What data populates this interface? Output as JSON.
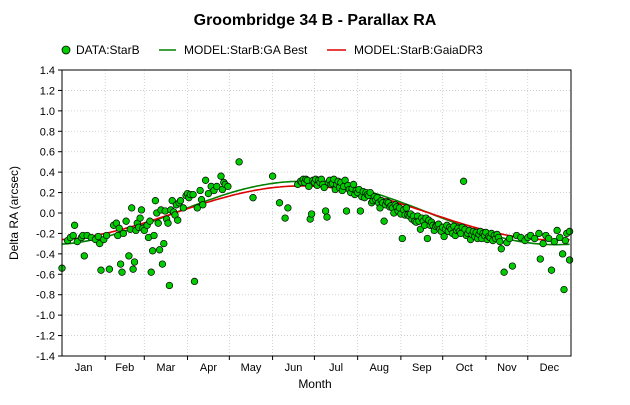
{
  "chart_data": {
    "type": "scatter",
    "title": "Groombridge 34 B - Parallax RA",
    "xlabel": "Month",
    "ylabel": "Delta RA (arcsec)",
    "x_unit": "day of year",
    "xlim": [
      1,
      366
    ],
    "ylim": [
      -1.4,
      1.4
    ],
    "y_ticks": [
      "1.4",
      "1.2",
      "1.0",
      "0.8",
      "0.6",
      "0.4",
      "0.2",
      "0.0",
      "-0.2",
      "-0.4",
      "-0.6",
      "-0.8",
      "-1.0",
      "-1.2",
      "-1.4"
    ],
    "x_tick_labels": [
      "Jan",
      "Feb",
      "Mar",
      "Apr",
      "May",
      "Jun",
      "Jul",
      "Aug",
      "Sep",
      "Oct",
      "Nov",
      "Dec"
    ],
    "grid": true,
    "legend_position": "top",
    "series": [
      {
        "name": "DATA:StarB",
        "kind": "points",
        "color": "#00cc00",
        "points": [
          [
            1,
            -0.54
          ],
          [
            5,
            -0.27
          ],
          [
            7,
            -0.24
          ],
          [
            9,
            -0.22
          ],
          [
            10,
            -0.12
          ],
          [
            12,
            -0.28
          ],
          [
            15,
            -0.24
          ],
          [
            16,
            -0.22
          ],
          [
            17,
            -0.42
          ],
          [
            19,
            -0.22
          ],
          [
            22,
            -0.24
          ],
          [
            25,
            -0.26
          ],
          [
            27,
            -0.23
          ],
          [
            28,
            -0.3
          ],
          [
            29,
            -0.56
          ],
          [
            31,
            -0.26
          ],
          [
            33,
            -0.22
          ],
          [
            35,
            -0.55
          ],
          [
            38,
            -0.12
          ],
          [
            40,
            -0.1
          ],
          [
            41,
            -0.22
          ],
          [
            42,
            -0.15
          ],
          [
            43,
            -0.5
          ],
          [
            44,
            -0.58
          ],
          [
            45,
            -0.2
          ],
          [
            47,
            -0.08
          ],
          [
            49,
            -0.42
          ],
          [
            50,
            -0.16
          ],
          [
            51,
            0.05
          ],
          [
            52,
            -0.55
          ],
          [
            53,
            -0.48
          ],
          [
            54,
            -0.17
          ],
          [
            55,
            -0.1
          ],
          [
            56,
            -0.14
          ],
          [
            57,
            -0.05
          ],
          [
            58,
            0.03
          ],
          [
            59,
            -0.15
          ],
          [
            60,
            -0.17
          ],
          [
            62,
            -0.12
          ],
          [
            63,
            -0.24
          ],
          [
            64,
            -0.08
          ],
          [
            65,
            -0.58
          ],
          [
            66,
            -0.37
          ],
          [
            67,
            -0.22
          ],
          [
            68,
            0.12
          ],
          [
            69,
            0.0
          ],
          [
            70,
            -0.1
          ],
          [
            71,
            -0.36
          ],
          [
            72,
            0.03
          ],
          [
            73,
            -0.5
          ],
          [
            74,
            -0.3
          ],
          [
            75,
            0.02
          ],
          [
            76,
            -0.06
          ],
          [
            77,
            -0.1
          ],
          [
            78,
            -0.71
          ],
          [
            79,
            0.03
          ],
          [
            80,
            0.12
          ],
          [
            81,
            0.01
          ],
          [
            82,
            -0.02
          ],
          [
            83,
            0.08
          ],
          [
            84,
            -0.07
          ],
          [
            85,
            0.1
          ],
          [
            86,
            0.12
          ],
          [
            88,
            0.05
          ],
          [
            90,
            0.17
          ],
          [
            91,
            0.19
          ],
          [
            92,
            0.15
          ],
          [
            93,
            0.18
          ],
          [
            95,
            0.18
          ],
          [
            96,
            -0.67
          ],
          [
            98,
            0.05
          ],
          [
            100,
            0.22
          ],
          [
            101,
            0.13
          ],
          [
            102,
            0.08
          ],
          [
            104,
            0.32
          ],
          [
            106,
            0.19
          ],
          [
            108,
            0.26
          ],
          [
            110,
            0.22
          ],
          [
            112,
            0.26
          ],
          [
            115,
            0.36
          ],
          [
            116,
            0.23
          ],
          [
            117,
            0.3
          ],
          [
            118,
            0.28
          ],
          [
            120,
            0.26
          ],
          [
            128,
            0.5
          ],
          [
            138,
            0.15
          ],
          [
            152,
            0.36
          ],
          [
            157,
            0.1
          ],
          [
            161,
            -0.05
          ],
          [
            163,
            0.05
          ],
          [
            170,
            0.28
          ],
          [
            172,
            0.31
          ],
          [
            173,
            0.3
          ],
          [
            174,
            0.33
          ],
          [
            175,
            0.3
          ],
          [
            176,
            0.33
          ],
          [
            177,
            0.32
          ],
          [
            178,
            0.26
          ],
          [
            179,
            -0.06
          ],
          [
            180,
            -0.01
          ],
          [
            181,
            0.32
          ],
          [
            182,
            0.3
          ],
          [
            183,
            0.33
          ],
          [
            184,
            0.27
          ],
          [
            185,
            0.32
          ],
          [
            186,
            0.3
          ],
          [
            187,
            0.33
          ],
          [
            188,
            0.28
          ],
          [
            189,
            0.25
          ],
          [
            190,
            0.02
          ],
          [
            191,
            -0.04
          ],
          [
            192,
            0.3
          ],
          [
            193,
            0.32
          ],
          [
            194,
            0.28
          ],
          [
            195,
            0.29
          ],
          [
            196,
            0.33
          ],
          [
            197,
            0.23
          ],
          [
            198,
            0.28
          ],
          [
            199,
            0.31
          ],
          [
            200,
            0.25
          ],
          [
            201,
            0.3
          ],
          [
            202,
            0.22
          ],
          [
            203,
            0.26
          ],
          [
            204,
            0.32
          ],
          [
            205,
            0.02
          ],
          [
            206,
            0.27
          ],
          [
            207,
            0.23
          ],
          [
            208,
            0.2
          ],
          [
            209,
            0.24
          ],
          [
            210,
            0.28
          ],
          [
            211,
            0.18
          ],
          [
            212,
            0.22
          ],
          [
            213,
            0.2
          ],
          [
            214,
            0.23
          ],
          [
            215,
            0.02
          ],
          [
            216,
            0.16
          ],
          [
            217,
            0.21
          ],
          [
            218,
            0.15
          ],
          [
            219,
            0.2
          ],
          [
            220,
            0.18
          ],
          [
            221,
            0.17
          ],
          [
            222,
            0.2
          ],
          [
            223,
            0.1
          ],
          [
            224,
            0.12
          ],
          [
            225,
            0.16
          ],
          [
            226,
            0.13
          ],
          [
            227,
            0.15
          ],
          [
            228,
            0.1
          ],
          [
            229,
            0.05
          ],
          [
            230,
            0.12
          ],
          [
            231,
            0.1
          ],
          [
            232,
            -0.08
          ],
          [
            233,
            0.08
          ],
          [
            234,
            0.11
          ],
          [
            235,
            0.1
          ],
          [
            236,
            0.06
          ],
          [
            237,
            0.07
          ],
          [
            238,
            0.05
          ],
          [
            239,
            0.0
          ],
          [
            240,
            0.08
          ],
          [
            241,
            0.06
          ],
          [
            242,
            0.02
          ],
          [
            243,
            0.05
          ],
          [
            244,
            -0.01
          ],
          [
            245,
            -0.25
          ],
          [
            246,
            0.03
          ],
          [
            247,
            -0.02
          ],
          [
            248,
            0.05
          ],
          [
            249,
            -0.02
          ],
          [
            250,
            -0.03
          ],
          [
            251,
            -0.01
          ],
          [
            252,
            -0.06
          ],
          [
            253,
            -0.03
          ],
          [
            254,
            -0.08
          ],
          [
            255,
            -0.09
          ],
          [
            256,
            -0.03
          ],
          [
            257,
            -0.08
          ],
          [
            258,
            -0.16
          ],
          [
            259,
            -0.05
          ],
          [
            260,
            -0.08
          ],
          [
            261,
            -0.12
          ],
          [
            262,
            -0.05
          ],
          [
            263,
            -0.25
          ],
          [
            264,
            -0.07
          ],
          [
            265,
            -0.12
          ],
          [
            266,
            -0.09
          ],
          [
            267,
            -0.12
          ],
          [
            268,
            -0.17
          ],
          [
            269,
            -0.13
          ],
          [
            270,
            -0.12
          ],
          [
            271,
            -0.11
          ],
          [
            272,
            -0.16
          ],
          [
            273,
            -0.18
          ],
          [
            274,
            -0.14
          ],
          [
            275,
            -0.23
          ],
          [
            276,
            -0.16
          ],
          [
            277,
            -0.12
          ],
          [
            278,
            -0.18
          ],
          [
            279,
            -0.14
          ],
          [
            280,
            -0.16
          ],
          [
            281,
            -0.2
          ],
          [
            282,
            -0.13
          ],
          [
            283,
            -0.22
          ],
          [
            284,
            -0.17
          ],
          [
            285,
            -0.15
          ],
          [
            286,
            -0.18
          ],
          [
            287,
            -0.2
          ],
          [
            288,
            -0.14
          ],
          [
            289,
            0.31
          ],
          [
            290,
            -0.16
          ],
          [
            291,
            -0.22
          ],
          [
            292,
            -0.2
          ],
          [
            293,
            -0.17
          ],
          [
            294,
            -0.26
          ],
          [
            295,
            -0.21
          ],
          [
            296,
            -0.18
          ],
          [
            297,
            -0.23
          ],
          [
            298,
            -0.19
          ],
          [
            299,
            -0.25
          ],
          [
            300,
            -0.21
          ],
          [
            301,
            -0.18
          ],
          [
            302,
            -0.25
          ],
          [
            303,
            -0.2
          ],
          [
            304,
            -0.22
          ],
          [
            305,
            -0.19
          ],
          [
            306,
            -0.26
          ],
          [
            307,
            -0.23
          ],
          [
            308,
            -0.24
          ],
          [
            309,
            -0.2
          ],
          [
            310,
            -0.27
          ],
          [
            311,
            -0.22
          ],
          [
            312,
            -0.25
          ],
          [
            313,
            -0.21
          ],
          [
            314,
            -0.24
          ],
          [
            315,
            -0.28
          ],
          [
            316,
            -0.35
          ],
          [
            318,
            -0.58
          ],
          [
            320,
            -0.29
          ],
          [
            322,
            -0.25
          ],
          [
            324,
            -0.52
          ],
          [
            327,
            -0.22
          ],
          [
            330,
            -0.24
          ],
          [
            333,
            -0.27
          ],
          [
            335,
            -0.24
          ],
          [
            337,
            -0.22
          ],
          [
            340,
            -0.25
          ],
          [
            343,
            -0.2
          ],
          [
            344,
            -0.45
          ],
          [
            346,
            -0.3
          ],
          [
            348,
            -0.22
          ],
          [
            350,
            -0.25
          ],
          [
            352,
            -0.56
          ],
          [
            354,
            -0.28
          ],
          [
            356,
            -0.17
          ],
          [
            358,
            -0.24
          ],
          [
            360,
            -0.4
          ],
          [
            361,
            -0.75
          ],
          [
            362,
            -0.27
          ],
          [
            363,
            -0.2
          ],
          [
            365,
            -0.18
          ],
          [
            365,
            -0.46
          ]
        ]
      },
      {
        "name": "MODEL:StarB:GA Best",
        "kind": "curve",
        "color": "#008000",
        "amplitude": 0.31,
        "peak_day": 173
      },
      {
        "name": "MODEL:StarB:GaiaDR3",
        "kind": "curve",
        "color": "#dd0000",
        "amplitude": 0.265,
        "peak_day": 173
      }
    ]
  }
}
